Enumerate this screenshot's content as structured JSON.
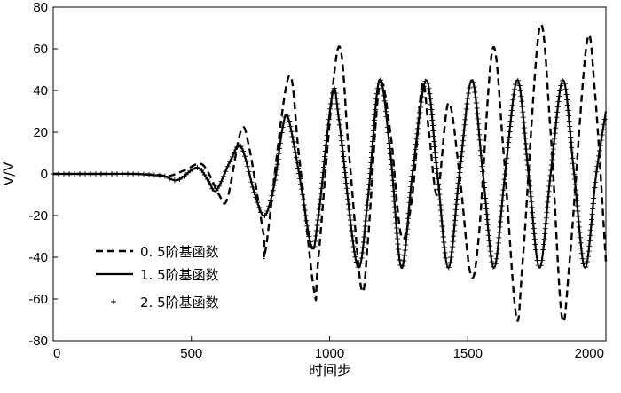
{
  "chart_data": {
    "type": "line",
    "title": "",
    "xlabel": "时间步",
    "ylabel": "V/V",
    "xlim": [
      0,
      2000
    ],
    "ylim": [
      -80,
      80
    ],
    "xticks": [
      "0",
      "500",
      "1000",
      "1500",
      "2000"
    ],
    "yticks": [
      "80",
      "60",
      "40",
      "20",
      "0",
      "-20",
      "-40",
      "-60",
      "-80"
    ],
    "grid": false,
    "legend_position": "bottom-left",
    "series": [
      {
        "name": "0. 5阶基函数",
        "style": "dashed",
        "points": [
          [
            0,
            0
          ],
          [
            100,
            0
          ],
          [
            200,
            0
          ],
          [
            300,
            0
          ],
          [
            380,
            -0.5
          ],
          [
            420,
            -1
          ],
          [
            480,
            2
          ],
          [
            530,
            5
          ],
          [
            560,
            1
          ],
          [
            600,
            -10
          ],
          [
            630,
            -12
          ],
          [
            680,
            21
          ],
          [
            710,
            12
          ],
          [
            760,
            -28
          ],
          [
            770,
            -35
          ],
          [
            850,
            46
          ],
          [
            890,
            8
          ],
          [
            945,
            -57
          ],
          [
            960,
            -40
          ],
          [
            1030,
            60
          ],
          [
            1070,
            10
          ],
          [
            1115,
            -55
          ],
          [
            1140,
            -30
          ],
          [
            1180,
            42
          ],
          [
            1220,
            20
          ],
          [
            1260,
            -30
          ],
          [
            1300,
            -10
          ],
          [
            1335,
            43
          ],
          [
            1360,
            20
          ],
          [
            1390,
            -10
          ],
          [
            1430,
            34
          ],
          [
            1470,
            0
          ],
          [
            1510,
            -48
          ],
          [
            1540,
            -30
          ],
          [
            1590,
            60
          ],
          [
            1630,
            10
          ],
          [
            1675,
            -68
          ],
          [
            1700,
            -40
          ],
          [
            1760,
            70
          ],
          [
            1800,
            20
          ],
          [
            1840,
            -68
          ],
          [
            1870,
            -40
          ],
          [
            1930,
            62
          ],
          [
            1960,
            40
          ],
          [
            2000,
            -42
          ]
        ]
      },
      {
        "name": "1. 5阶基函数",
        "style": "solid",
        "points": [
          [
            0,
            0
          ],
          [
            100,
            0
          ],
          [
            200,
            0
          ],
          [
            300,
            0
          ],
          [
            350,
            -0.5
          ],
          [
            400,
            -1
          ],
          [
            450,
            -3
          ],
          [
            520,
            3
          ],
          [
            560,
            -3
          ],
          [
            590,
            -8
          ],
          [
            640,
            6
          ],
          [
            680,
            13
          ],
          [
            730,
            -10
          ],
          [
            765,
            -20
          ],
          [
            800,
            -5
          ],
          [
            830,
            22
          ],
          [
            850,
            27
          ],
          [
            890,
            0
          ],
          [
            935,
            -35
          ],
          [
            960,
            -20
          ],
          [
            1010,
            38
          ],
          [
            1035,
            25
          ],
          [
            1100,
            -44
          ],
          [
            1140,
            -10
          ],
          [
            1180,
            45
          ],
          [
            1220,
            10
          ],
          [
            1260,
            -45
          ],
          [
            1300,
            0
          ],
          [
            1350,
            45
          ],
          [
            1390,
            0
          ],
          [
            1430,
            -45
          ],
          [
            1470,
            0
          ],
          [
            1515,
            45
          ],
          [
            1555,
            0
          ],
          [
            1595,
            -45
          ],
          [
            1635,
            0
          ],
          [
            1680,
            45
          ],
          [
            1720,
            0
          ],
          [
            1760,
            -45
          ],
          [
            1800,
            0
          ],
          [
            1845,
            45
          ],
          [
            1885,
            0
          ],
          [
            1925,
            -45
          ],
          [
            1965,
            0
          ],
          [
            2000,
            30
          ]
        ]
      },
      {
        "name": "2. 5阶基函数",
        "style": "markers-plus",
        "points": [
          [
            0,
            0
          ],
          [
            100,
            0
          ],
          [
            200,
            0
          ],
          [
            300,
            0
          ],
          [
            350,
            -0.5
          ],
          [
            400,
            -1
          ],
          [
            450,
            -3
          ],
          [
            520,
            3
          ],
          [
            560,
            -3
          ],
          [
            590,
            -8
          ],
          [
            640,
            6
          ],
          [
            680,
            13
          ],
          [
            730,
            -10
          ],
          [
            765,
            -20
          ],
          [
            800,
            -5
          ],
          [
            830,
            22
          ],
          [
            850,
            27
          ],
          [
            890,
            0
          ],
          [
            935,
            -35
          ],
          [
            960,
            -20
          ],
          [
            1010,
            38
          ],
          [
            1035,
            25
          ],
          [
            1100,
            -44
          ],
          [
            1140,
            -10
          ],
          [
            1180,
            45
          ],
          [
            1220,
            10
          ],
          [
            1260,
            -45
          ],
          [
            1300,
            0
          ],
          [
            1350,
            45
          ],
          [
            1390,
            0
          ],
          [
            1430,
            -45
          ],
          [
            1470,
            0
          ],
          [
            1515,
            45
          ],
          [
            1555,
            0
          ],
          [
            1595,
            -45
          ],
          [
            1635,
            0
          ],
          [
            1680,
            45
          ],
          [
            1720,
            0
          ],
          [
            1760,
            -45
          ],
          [
            1800,
            0
          ],
          [
            1845,
            45
          ],
          [
            1885,
            0
          ],
          [
            1925,
            -45
          ],
          [
            1965,
            0
          ],
          [
            2000,
            30
          ]
        ]
      }
    ]
  },
  "colors": {
    "line": "#000000",
    "background": "#ffffff"
  }
}
